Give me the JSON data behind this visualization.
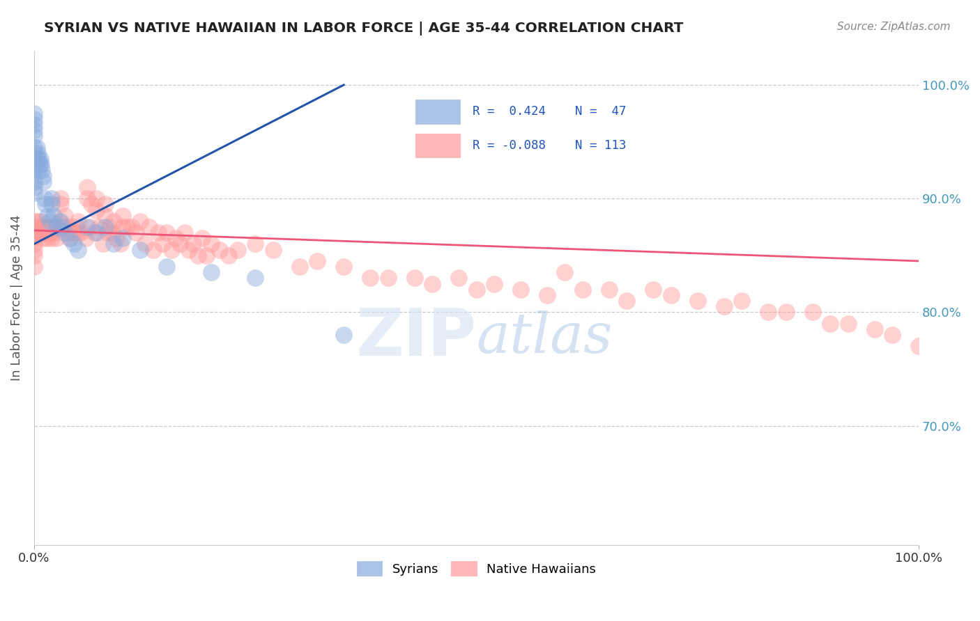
{
  "title": "SYRIAN VS NATIVE HAWAIIAN IN LABOR FORCE | AGE 35-44 CORRELATION CHART",
  "source_text": "Source: ZipAtlas.com",
  "ylabel": "In Labor Force | Age 35-44",
  "xmin": 0.0,
  "xmax": 1.0,
  "ymin": 0.595,
  "ymax": 1.03,
  "y_tick_positions": [
    0.7,
    0.8,
    0.9,
    1.0
  ],
  "blue_color": "#88AADD",
  "pink_color": "#FF9999",
  "blue_line_color": "#2255AA",
  "pink_line_color": "#EE5577",
  "r_color": "#2255BB",
  "n_color": "#3399CC",
  "syrians_x": [
    0.0,
    0.0,
    0.0,
    0.0,
    0.0,
    0.0,
    0.0,
    0.0,
    0.0,
    0.0,
    0.0,
    0.0,
    0.003,
    0.003,
    0.004,
    0.005,
    0.005,
    0.006,
    0.007,
    0.008,
    0.009,
    0.01,
    0.01,
    0.012,
    0.013,
    0.015,
    0.017,
    0.02,
    0.02,
    0.022,
    0.025,
    0.03,
    0.03,
    0.035,
    0.04,
    0.045,
    0.05,
    0.06,
    0.07,
    0.08,
    0.09,
    0.1,
    0.12,
    0.15,
    0.2,
    0.25,
    0.35
  ],
  "syrians_y": [
    0.975,
    0.97,
    0.965,
    0.96,
    0.955,
    0.945,
    0.94,
    0.935,
    0.925,
    0.915,
    0.91,
    0.905,
    0.945,
    0.935,
    0.94,
    0.935,
    0.925,
    0.93,
    0.935,
    0.93,
    0.925,
    0.92,
    0.915,
    0.9,
    0.895,
    0.885,
    0.88,
    0.9,
    0.895,
    0.885,
    0.875,
    0.88,
    0.875,
    0.87,
    0.865,
    0.86,
    0.855,
    0.875,
    0.87,
    0.875,
    0.86,
    0.865,
    0.855,
    0.84,
    0.835,
    0.83,
    0.78
  ],
  "native_hawaiians_x": [
    0.0,
    0.0,
    0.0,
    0.0,
    0.0,
    0.0,
    0.0,
    0.0,
    0.005,
    0.005,
    0.008,
    0.01,
    0.01,
    0.012,
    0.015,
    0.015,
    0.018,
    0.02,
    0.02,
    0.022,
    0.025,
    0.025,
    0.03,
    0.03,
    0.035,
    0.04,
    0.04,
    0.045,
    0.05,
    0.05,
    0.06,
    0.06,
    0.065,
    0.07,
    0.07,
    0.08,
    0.08,
    0.085,
    0.09,
    0.1,
    0.1,
    0.11,
    0.12,
    0.13,
    0.14,
    0.15,
    0.16,
    0.17,
    0.18,
    0.19,
    0.2,
    0.21,
    0.22,
    0.23,
    0.25,
    0.27,
    0.3,
    0.32,
    0.35,
    0.38,
    0.4,
    0.43,
    0.45,
    0.48,
    0.5,
    0.52,
    0.55,
    0.58,
    0.6,
    0.62,
    0.65,
    0.67,
    0.7,
    0.72,
    0.75,
    0.78,
    0.8,
    0.83,
    0.85,
    0.88,
    0.9,
    0.92,
    0.95,
    0.97,
    1.0,
    0.003,
    0.006,
    0.009,
    0.013,
    0.016,
    0.019,
    0.023,
    0.028,
    0.033,
    0.038,
    0.042,
    0.047,
    0.053,
    0.058,
    0.063,
    0.068,
    0.073,
    0.078,
    0.083,
    0.088,
    0.093,
    0.098,
    0.105,
    0.115,
    0.125,
    0.135,
    0.145,
    0.155,
    0.165,
    0.175,
    0.185,
    0.195
  ],
  "native_hawaiians_y": [
    0.88,
    0.87,
    0.875,
    0.865,
    0.86,
    0.855,
    0.85,
    0.84,
    0.875,
    0.87,
    0.88,
    0.875,
    0.865,
    0.87,
    0.875,
    0.865,
    0.87,
    0.875,
    0.865,
    0.87,
    0.875,
    0.865,
    0.9,
    0.895,
    0.885,
    0.875,
    0.865,
    0.87,
    0.88,
    0.87,
    0.91,
    0.9,
    0.895,
    0.9,
    0.89,
    0.895,
    0.885,
    0.875,
    0.88,
    0.885,
    0.875,
    0.875,
    0.88,
    0.875,
    0.87,
    0.87,
    0.865,
    0.87,
    0.86,
    0.865,
    0.86,
    0.855,
    0.85,
    0.855,
    0.86,
    0.855,
    0.84,
    0.845,
    0.84,
    0.83,
    0.83,
    0.83,
    0.825,
    0.83,
    0.82,
    0.825,
    0.82,
    0.815,
    0.835,
    0.82,
    0.82,
    0.81,
    0.82,
    0.815,
    0.81,
    0.805,
    0.81,
    0.8,
    0.8,
    0.8,
    0.79,
    0.79,
    0.785,
    0.78,
    0.77,
    0.88,
    0.875,
    0.87,
    0.875,
    0.87,
    0.87,
    0.875,
    0.88,
    0.875,
    0.87,
    0.87,
    0.875,
    0.87,
    0.865,
    0.875,
    0.87,
    0.875,
    0.86,
    0.87,
    0.87,
    0.865,
    0.86,
    0.875,
    0.87,
    0.86,
    0.855,
    0.86,
    0.855,
    0.86,
    0.855,
    0.85,
    0.85
  ],
  "blue_line_x": [
    0.0,
    0.35
  ],
  "blue_line_y": [
    0.86,
    1.0
  ],
  "pink_line_x": [
    0.0,
    1.0
  ],
  "pink_line_y": [
    0.872,
    0.845
  ]
}
